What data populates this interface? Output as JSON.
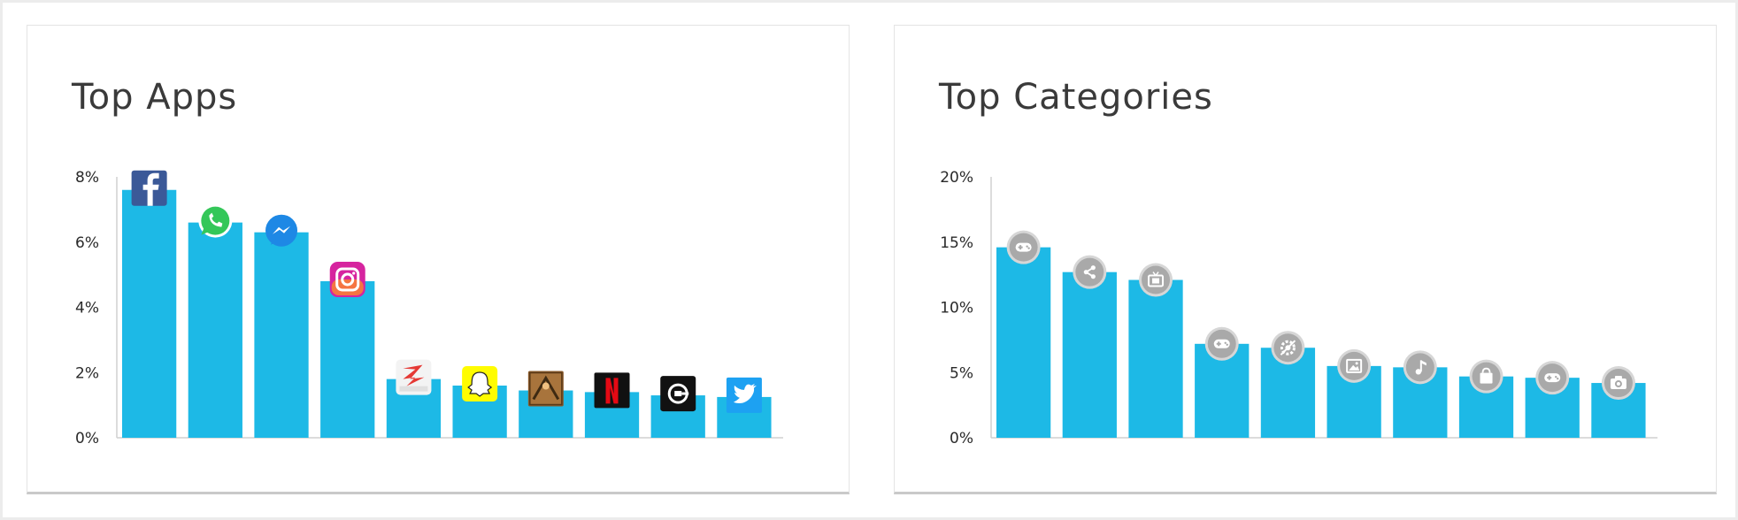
{
  "colors": {
    "bar": "#1db9e6",
    "axis": "#d0d0d0",
    "badge": "#a9a9a9",
    "badge_ring": "#d6d6d6"
  },
  "cards": [
    {
      "title": "Top Apps",
      "chart_data": {
        "type": "bar",
        "title": "Top Apps",
        "ylim": [
          0,
          8
        ],
        "yticks": [
          0,
          2,
          4,
          6,
          8
        ],
        "ytick_labels": [
          "0%",
          "2%",
          "4%",
          "6%",
          "8%"
        ],
        "categories": [
          "facebook",
          "whatsapp",
          "messenger",
          "instagram",
          "zapya",
          "snapchat",
          "game",
          "netflix",
          "uber",
          "twitter"
        ],
        "values": [
          7.6,
          6.6,
          6.3,
          4.8,
          1.8,
          1.6,
          1.45,
          1.4,
          1.3,
          1.25
        ],
        "icons": [
          "facebook-icon",
          "whatsapp-icon",
          "messenger-icon",
          "instagram-icon",
          "zapya-icon",
          "snapchat-icon",
          "game-app-icon",
          "netflix-icon",
          "uber-icon",
          "twitter-icon"
        ]
      }
    },
    {
      "title": "Top Categories",
      "chart_data": {
        "type": "bar",
        "title": "Top Categories",
        "ylim": [
          0,
          20
        ],
        "yticks": [
          0,
          5,
          10,
          15,
          20
        ],
        "ytick_labels": [
          "0%",
          "5%",
          "10%",
          "15%",
          "20%"
        ],
        "categories": [
          "games",
          "social",
          "entertainment",
          "games-2",
          "tools",
          "photography",
          "music",
          "shopping",
          "games-3",
          "camera"
        ],
        "values": [
          14.6,
          12.7,
          12.1,
          7.2,
          6.9,
          5.5,
          5.4,
          4.7,
          4.6,
          4.2
        ],
        "icons": [
          "gamepad-icon",
          "share-icon",
          "tv-icon",
          "gamepad-icon",
          "settings-icon",
          "image-icon",
          "music-icon",
          "shopping-bag-icon",
          "gamepad-icon",
          "camera-icon"
        ]
      }
    }
  ]
}
